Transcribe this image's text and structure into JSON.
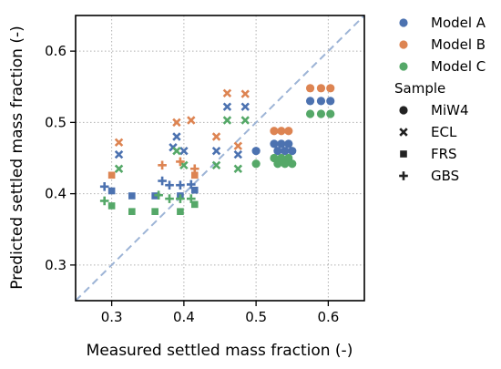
{
  "chart_data": {
    "type": "scatter",
    "xlabel": "Measured settled mass fraction (-)",
    "ylabel": "Predicted settled mass fraction (-)",
    "xlim": [
      0.25,
      0.65
    ],
    "ylim": [
      0.25,
      0.65
    ],
    "xticks": [
      0.3,
      0.4,
      0.5,
      0.6
    ],
    "yticks": [
      0.3,
      0.4,
      0.5,
      0.6
    ],
    "xtick_labels": [
      "0.3",
      "0.4",
      "0.5",
      "0.6"
    ],
    "ytick_labels": [
      "0.3",
      "0.4",
      "0.5",
      "0.6"
    ],
    "grid": true,
    "identity_line": true,
    "identity_color": "#9db4d6",
    "legend": {
      "placement": "outside-right",
      "hue_entries": [
        {
          "label": "Model A",
          "color": "#4c72b0"
        },
        {
          "label": "Model B",
          "color": "#dd8452"
        },
        {
          "label": "Model C",
          "color": "#55a868"
        }
      ],
      "style_title": "Sample",
      "style_entries": [
        {
          "label": "MiW4",
          "marker": "circle"
        },
        {
          "label": "ECL",
          "marker": "x"
        },
        {
          "label": "FRS",
          "marker": "square"
        },
        {
          "label": "GBS",
          "marker": "plus"
        }
      ]
    },
    "series": [
      {
        "name": "Model A",
        "color": "#4c72b0",
        "sample": "MiW4",
        "marker": "circle",
        "points": [
          [
            0.5,
            0.46
          ],
          [
            0.525,
            0.47
          ],
          [
            0.535,
            0.47
          ],
          [
            0.545,
            0.47
          ],
          [
            0.53,
            0.46
          ],
          [
            0.54,
            0.46
          ],
          [
            0.55,
            0.46
          ],
          [
            0.575,
            0.53
          ],
          [
            0.59,
            0.53
          ],
          [
            0.603,
            0.53
          ]
        ]
      },
      {
        "name": "Model B",
        "color": "#dd8452",
        "sample": "MiW4",
        "marker": "circle",
        "points": [
          [
            0.525,
            0.488
          ],
          [
            0.535,
            0.488
          ],
          [
            0.545,
            0.488
          ],
          [
            0.575,
            0.548
          ],
          [
            0.59,
            0.548
          ],
          [
            0.603,
            0.548
          ]
        ]
      },
      {
        "name": "Model C",
        "color": "#55a868",
        "sample": "MiW4",
        "marker": "circle",
        "points": [
          [
            0.5,
            0.442
          ],
          [
            0.525,
            0.45
          ],
          [
            0.535,
            0.45
          ],
          [
            0.545,
            0.45
          ],
          [
            0.53,
            0.442
          ],
          [
            0.54,
            0.442
          ],
          [
            0.55,
            0.442
          ],
          [
            0.575,
            0.512
          ],
          [
            0.59,
            0.512
          ],
          [
            0.603,
            0.512
          ]
        ]
      },
      {
        "name": "Model A",
        "color": "#4c72b0",
        "sample": "ECL",
        "marker": "x",
        "points": [
          [
            0.31,
            0.455
          ],
          [
            0.385,
            0.465
          ],
          [
            0.39,
            0.48
          ],
          [
            0.4,
            0.46
          ],
          [
            0.445,
            0.46
          ],
          [
            0.46,
            0.522
          ],
          [
            0.475,
            0.455
          ],
          [
            0.485,
            0.522
          ]
        ]
      },
      {
        "name": "Model B",
        "color": "#dd8452",
        "sample": "ECL",
        "marker": "x",
        "points": [
          [
            0.31,
            0.472
          ],
          [
            0.39,
            0.5
          ],
          [
            0.41,
            0.503
          ],
          [
            0.445,
            0.48
          ],
          [
            0.46,
            0.541
          ],
          [
            0.475,
            0.467
          ],
          [
            0.485,
            0.54
          ]
        ]
      },
      {
        "name": "Model C",
        "color": "#55a868",
        "sample": "ECL",
        "marker": "x",
        "points": [
          [
            0.31,
            0.435
          ],
          [
            0.39,
            0.46
          ],
          [
            0.4,
            0.44
          ],
          [
            0.445,
            0.44
          ],
          [
            0.46,
            0.503
          ],
          [
            0.475,
            0.435
          ],
          [
            0.485,
            0.503
          ]
        ]
      },
      {
        "name": "Model A",
        "color": "#4c72b0",
        "sample": "FRS",
        "marker": "square",
        "points": [
          [
            0.3,
            0.404
          ],
          [
            0.328,
            0.397
          ],
          [
            0.36,
            0.397
          ],
          [
            0.395,
            0.397
          ],
          [
            0.415,
            0.405
          ]
        ]
      },
      {
        "name": "Model B",
        "color": "#dd8452",
        "sample": "FRS",
        "marker": "square",
        "points": [
          [
            0.3,
            0.426
          ],
          [
            0.415,
            0.426
          ]
        ]
      },
      {
        "name": "Model C",
        "color": "#55a868",
        "sample": "FRS",
        "marker": "square",
        "points": [
          [
            0.3,
            0.383
          ],
          [
            0.328,
            0.375
          ],
          [
            0.36,
            0.375
          ],
          [
            0.395,
            0.375
          ],
          [
            0.415,
            0.385
          ]
        ]
      },
      {
        "name": "Model A",
        "color": "#4c72b0",
        "sample": "GBS",
        "marker": "plus",
        "points": [
          [
            0.29,
            0.41
          ],
          [
            0.37,
            0.418
          ],
          [
            0.38,
            0.412
          ],
          [
            0.395,
            0.412
          ],
          [
            0.41,
            0.413
          ]
        ]
      },
      {
        "name": "Model B",
        "color": "#dd8452",
        "sample": "GBS",
        "marker": "plus",
        "points": [
          [
            0.37,
            0.44
          ],
          [
            0.395,
            0.445
          ],
          [
            0.415,
            0.435
          ]
        ]
      },
      {
        "name": "Model C",
        "color": "#55a868",
        "sample": "GBS",
        "marker": "plus",
        "points": [
          [
            0.29,
            0.39
          ],
          [
            0.365,
            0.398
          ],
          [
            0.38,
            0.393
          ],
          [
            0.395,
            0.393
          ],
          [
            0.41,
            0.393
          ]
        ]
      }
    ]
  }
}
